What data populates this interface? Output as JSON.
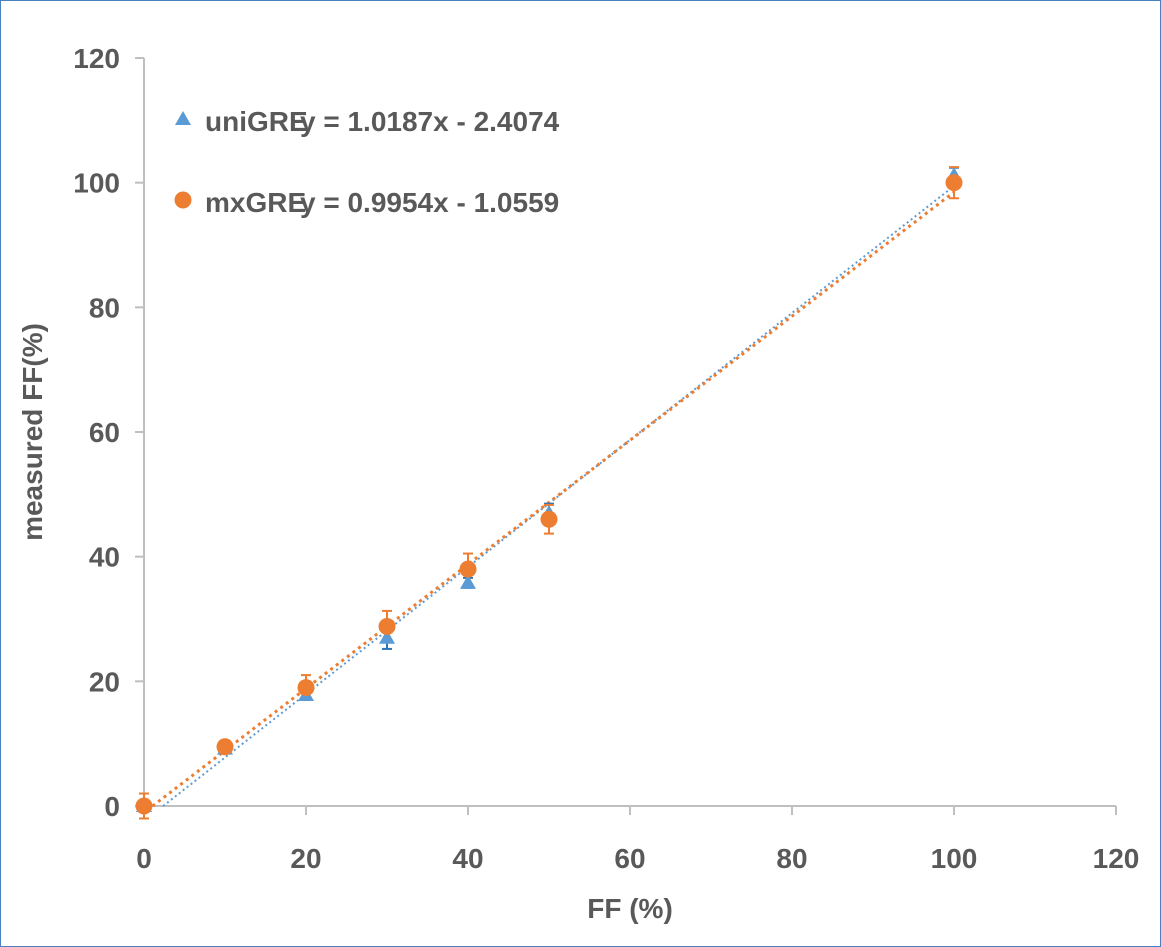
{
  "chart_data": {
    "type": "scatter",
    "xlabel": "FF (%)",
    "ylabel": "measured FF(%)",
    "xlim": [
      0,
      120
    ],
    "ylim": [
      0,
      120
    ],
    "x_ticks": [
      0,
      20,
      40,
      60,
      80,
      100,
      120
    ],
    "y_ticks": [
      0,
      20,
      40,
      60,
      80,
      100,
      120
    ],
    "grid": false,
    "legend_position": "top-left",
    "series": [
      {
        "name": "uniGRE",
        "marker": "triangle",
        "color": "#5b9bd5",
        "error_color": "#2e75b6",
        "points": [
          {
            "x": 0,
            "y": 0,
            "err": 0
          },
          {
            "x": 10,
            "y": 9.2,
            "err": 0.6
          },
          {
            "x": 20,
            "y": 17.8,
            "err": 0.6
          },
          {
            "x": 30,
            "y": 27.0,
            "err": 1.8
          },
          {
            "x": 40,
            "y": 35.8,
            "err": 0.8
          },
          {
            "x": 50,
            "y": 47.0,
            "err": 1.5
          },
          {
            "x": 100,
            "y": 101.2,
            "err": 1.2
          }
        ],
        "trendline": {
          "slope": 1.0187,
          "intercept": -2.4074,
          "x_range": [
            0,
            100
          ]
        },
        "equation": "y = 1.0187x - 2.4074"
      },
      {
        "name": "mxGRE",
        "marker": "circle",
        "color": "#ed7d31",
        "error_color": "#ed7d31",
        "points": [
          {
            "x": 0,
            "y": 0,
            "err": 2.0
          },
          {
            "x": 10,
            "y": 9.5,
            "err": 1.0
          },
          {
            "x": 20,
            "y": 19.0,
            "err": 2.0
          },
          {
            "x": 30,
            "y": 28.8,
            "err": 2.5
          },
          {
            "x": 40,
            "y": 38.0,
            "err": 2.5
          },
          {
            "x": 50,
            "y": 46.0,
            "err": 2.3
          },
          {
            "x": 100,
            "y": 100.0,
            "err": 2.5
          }
        ],
        "trendline": {
          "slope": 0.9954,
          "intercept": -1.0559,
          "x_range": [
            0,
            100
          ]
        },
        "equation": "y = 0.9954x - 1.0559"
      }
    ]
  }
}
